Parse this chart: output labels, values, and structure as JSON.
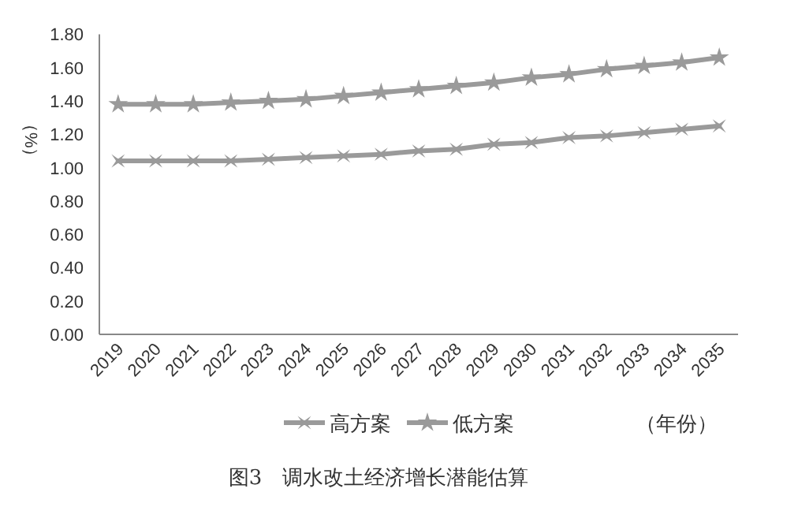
{
  "chart_data": {
    "type": "line",
    "title": "图3　调水改土经济增长潜能估算",
    "ylabel": "（%）",
    "xlabel": "（年份）",
    "categories": [
      "2019",
      "2020",
      "2021",
      "2022",
      "2023",
      "2024",
      "2025",
      "2026",
      "2027",
      "2028",
      "2029",
      "2030",
      "2031",
      "2032",
      "2033",
      "2034",
      "2035"
    ],
    "series": [
      {
        "name": "高方案",
        "color": "#9a9a9a",
        "marker": "cross",
        "values": [
          1.04,
          1.04,
          1.04,
          1.04,
          1.05,
          1.06,
          1.07,
          1.08,
          1.1,
          1.11,
          1.14,
          1.15,
          1.18,
          1.19,
          1.21,
          1.23,
          1.25
        ]
      },
      {
        "name": "低方案",
        "color": "#9a9a9a",
        "marker": "star",
        "values": [
          1.38,
          1.38,
          1.38,
          1.39,
          1.4,
          1.41,
          1.43,
          1.45,
          1.47,
          1.49,
          1.51,
          1.54,
          1.56,
          1.59,
          1.61,
          1.63,
          1.66
        ]
      }
    ],
    "ylim": [
      0,
      1.8
    ],
    "yticks": [
      {
        "value": 0,
        "label": "0.00"
      },
      {
        "value": 0.2,
        "label": "0.20"
      },
      {
        "value": 0.4,
        "label": "0.40"
      },
      {
        "value": 0.6,
        "label": "0.60"
      },
      {
        "value": 0.8,
        "label": "0.80"
      },
      {
        "value": 1.0,
        "label": "1.00"
      },
      {
        "value": 1.2,
        "label": "1.20"
      },
      {
        "value": 1.4,
        "label": "1.40"
      },
      {
        "value": 1.6,
        "label": "1.60"
      },
      {
        "value": 1.8,
        "label": "1.80"
      }
    ],
    "grid": false,
    "legend": "bottom",
    "line_style": "solid"
  }
}
